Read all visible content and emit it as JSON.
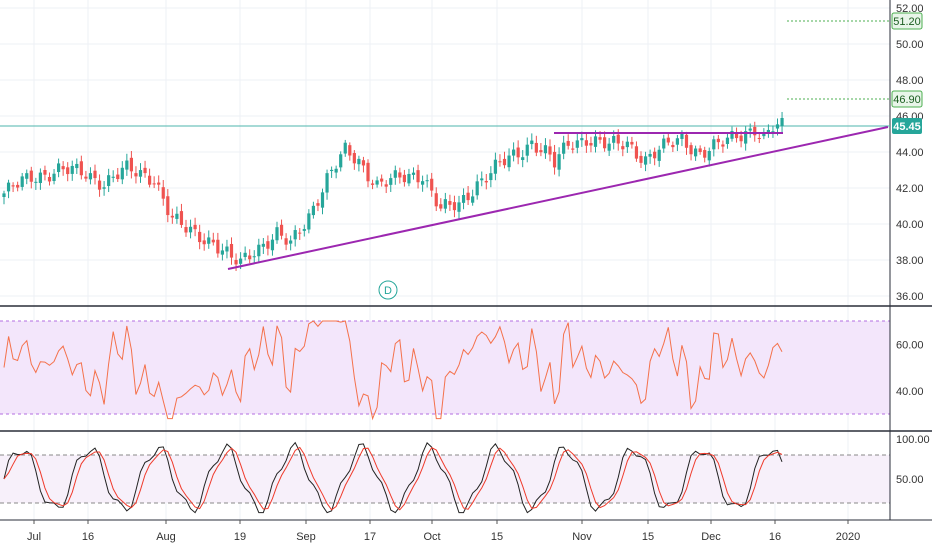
{
  "colors": {
    "up": "#26a69a",
    "down": "#ef5350",
    "trendline": "#9c27b0",
    "rsi_line": "#f4714b",
    "rsi_band": "#b36ee0",
    "stoch_k": "#222222",
    "stoch_d": "#ef3b2c",
    "price_line": "#4db6ac",
    "target_line": "#4caf50",
    "grid": "#eef1f5",
    "axis_text": "#333333"
  },
  "price_axis": {
    "ticks": [
      "36.00",
      "38.00",
      "40.00",
      "42.00",
      "44.00",
      "46.00",
      "48.00",
      "50.00",
      "52.00"
    ],
    "labels": {
      "target_high": "51.20",
      "target_mid": "46.90",
      "last": "45.45"
    }
  },
  "rsi_axis": {
    "ticks": [
      "40.00",
      "60.00"
    ]
  },
  "stoch_axis": {
    "ticks": [
      "50.00",
      "100.00"
    ]
  },
  "time_axis": {
    "labels": [
      "Jul",
      "16",
      "Aug",
      "19",
      "Sep",
      "17",
      "Oct",
      "15",
      "Nov",
      "15",
      "Dec",
      "16",
      "2020"
    ]
  },
  "marker": {
    "label": "D"
  },
  "chart_data": {
    "type": "candlestick",
    "period": "daily",
    "date_range": [
      "Jul",
      "Dec 2019"
    ],
    "last_price": 45.45,
    "levels": [
      51.2,
      46.9,
      45.45
    ],
    "indicators": [
      {
        "panel": "rsi",
        "upper_band": 70,
        "lower_band": 30
      },
      {
        "panel": "stochastic",
        "upper_band": 80,
        "lower_band": 20
      }
    ],
    "approx_trend": [
      [
        0,
        41.7
      ],
      [
        6,
        42.6
      ],
      [
        12,
        43.0
      ],
      [
        18,
        42.8
      ],
      [
        22,
        42.3
      ],
      [
        27,
        43.0
      ],
      [
        33,
        42.6
      ],
      [
        37,
        40.2
      ],
      [
        40,
        39.7
      ],
      [
        43,
        39.4
      ],
      [
        46,
        39.0
      ],
      [
        50,
        38.0
      ],
      [
        52,
        37.8
      ],
      [
        55,
        38.6
      ],
      [
        60,
        39.4
      ],
      [
        63,
        38.8
      ],
      [
        67,
        40.5
      ],
      [
        71,
        42.5
      ],
      [
        75,
        44.0
      ],
      [
        78,
        43.5
      ],
      [
        82,
        42.2
      ],
      [
        87,
        42.5
      ],
      [
        92,
        42.8
      ],
      [
        96,
        40.8
      ],
      [
        100,
        41.0
      ],
      [
        104,
        42.3
      ],
      [
        108,
        43.1
      ],
      [
        113,
        43.9
      ],
      [
        116,
        44.6
      ],
      [
        119,
        44.0
      ],
      [
        121,
        43.3
      ],
      [
        124,
        44.4
      ],
      [
        128,
        44.8
      ],
      [
        133,
        44.3
      ],
      [
        137,
        44.5
      ],
      [
        141,
        43.6
      ],
      [
        145,
        44.2
      ],
      [
        149,
        44.8
      ],
      [
        153,
        43.9
      ],
      [
        157,
        44.3
      ],
      [
        161,
        45.0
      ],
      [
        165,
        45.3
      ],
      [
        167,
        44.6
      ],
      [
        169,
        45.3
      ],
      [
        171,
        45.45
      ]
    ]
  }
}
